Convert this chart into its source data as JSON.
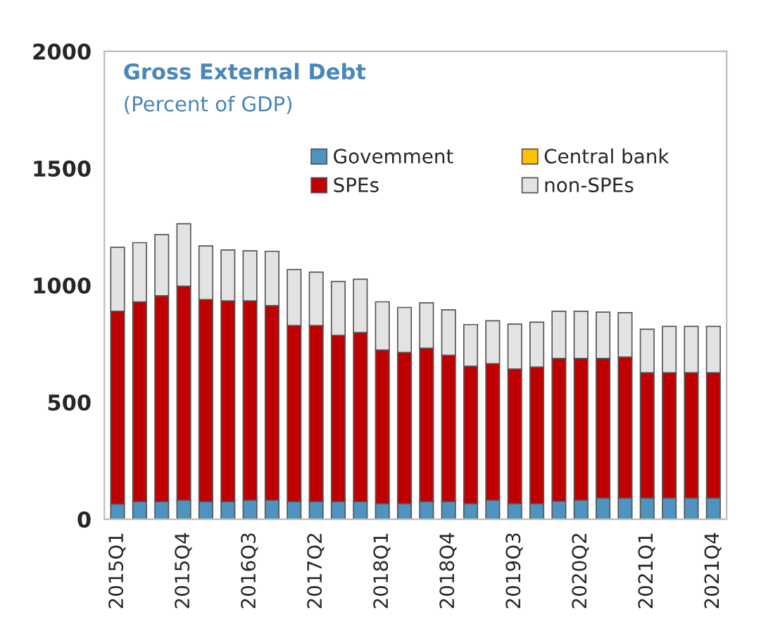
{
  "chart_data": {
    "type": "bar",
    "title": "Gross External Debt",
    "subtitle": "(Percent of GDP)",
    "stacked": true,
    "categories": [
      "2015Q1",
      null,
      null,
      "2015Q4",
      null,
      null,
      "2016Q3",
      null,
      null,
      "2017Q2",
      null,
      null,
      "2018Q1",
      null,
      null,
      "2018Q4",
      null,
      null,
      "2019Q3",
      null,
      null,
      "2020Q2",
      null,
      null,
      "2021Q1",
      null,
      null,
      "2021Q4"
    ],
    "series": [
      {
        "name": "Govemment",
        "color": "#4f93c0",
        "values": [
          65,
          75,
          75,
          81,
          75,
          75,
          81,
          81,
          75,
          75,
          75,
          75,
          67,
          67,
          75,
          75,
          67,
          81,
          67,
          67,
          77,
          81,
          91,
          91,
          91,
          91,
          91,
          91
        ]
      },
      {
        "name": "Central bank",
        "color": "#ffc000",
        "values": [
          0,
          0,
          0,
          0,
          0,
          0,
          0,
          0,
          0,
          0,
          0,
          0,
          0,
          0,
          0,
          0,
          0,
          0,
          0,
          0,
          0,
          0,
          0,
          0,
          0,
          0,
          0,
          0
        ]
      },
      {
        "name": "SPEs",
        "color": "#c00000",
        "values": [
          824,
          854,
          880,
          915,
          864,
          858,
          852,
          832,
          753,
          753,
          711,
          723,
          656,
          646,
          656,
          626,
          587,
          584,
          575,
          583,
          610,
          606,
          596,
          602,
          535,
          535,
          535,
          535
        ]
      },
      {
        "name": "non-SPEs",
        "color": "#e3e3e3",
        "values": [
          273,
          253,
          261,
          267,
          229,
          218,
          214,
          232,
          239,
          228,
          230,
          228,
          206,
          192,
          194,
          194,
          178,
          183,
          192,
          192,
          202,
          202,
          198,
          190,
          186,
          198,
          198,
          198
        ]
      }
    ],
    "ylim": [
      0,
      2000
    ],
    "yticks": [
      0,
      500,
      1000,
      1500,
      2000
    ],
    "grid": false,
    "legend": "top"
  }
}
